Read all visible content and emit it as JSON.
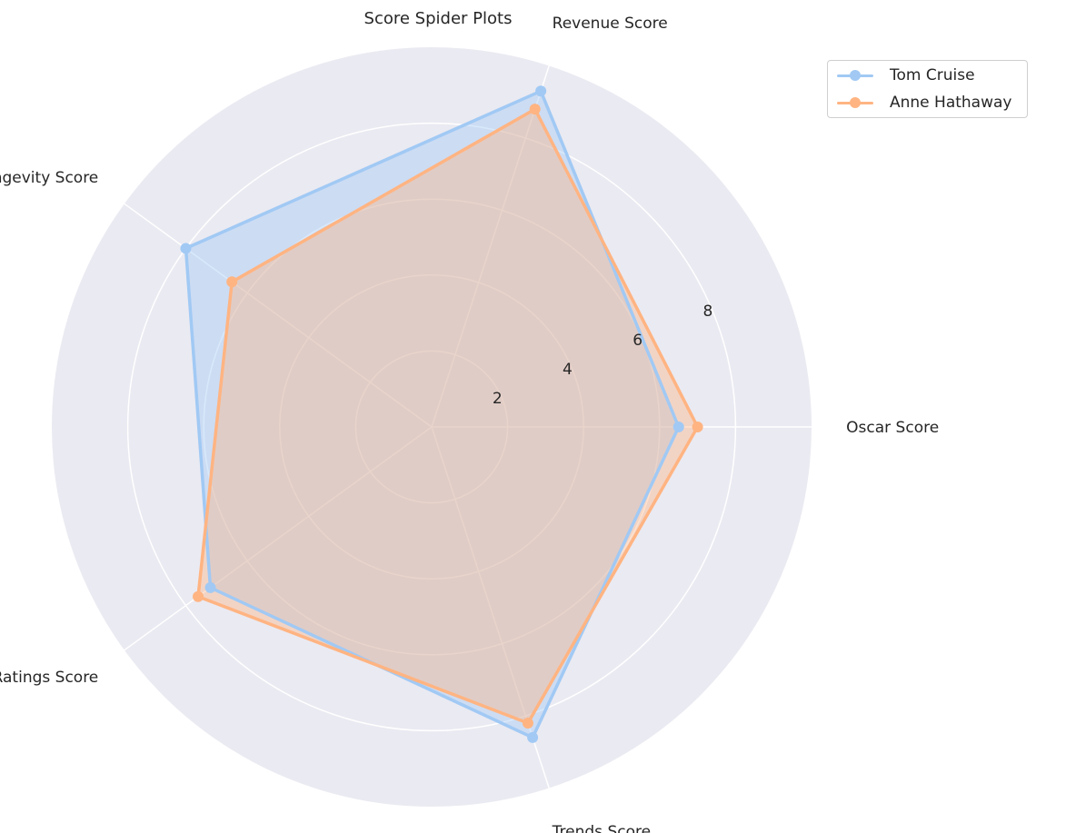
{
  "chart_data": {
    "type": "radar",
    "title": "Score Spider Plots",
    "axes": [
      "Oscar Score",
      "Revenue Score",
      "Longevity Score",
      "Ratings Score",
      "Trends Score"
    ],
    "rlim": [
      0,
      10
    ],
    "rticks": [
      2,
      4,
      6,
      8
    ],
    "grid": true,
    "legend_position": "upper-right-outside",
    "series": [
      {
        "name": "Tom Cruise",
        "color": "#a1c9f4",
        "values": [
          6.5,
          9.3,
          8.0,
          7.2,
          8.6
        ]
      },
      {
        "name": "Anne Hathaway",
        "color": "#ffb482",
        "values": [
          7.0,
          8.8,
          6.5,
          7.6,
          8.2
        ]
      }
    ]
  }
}
